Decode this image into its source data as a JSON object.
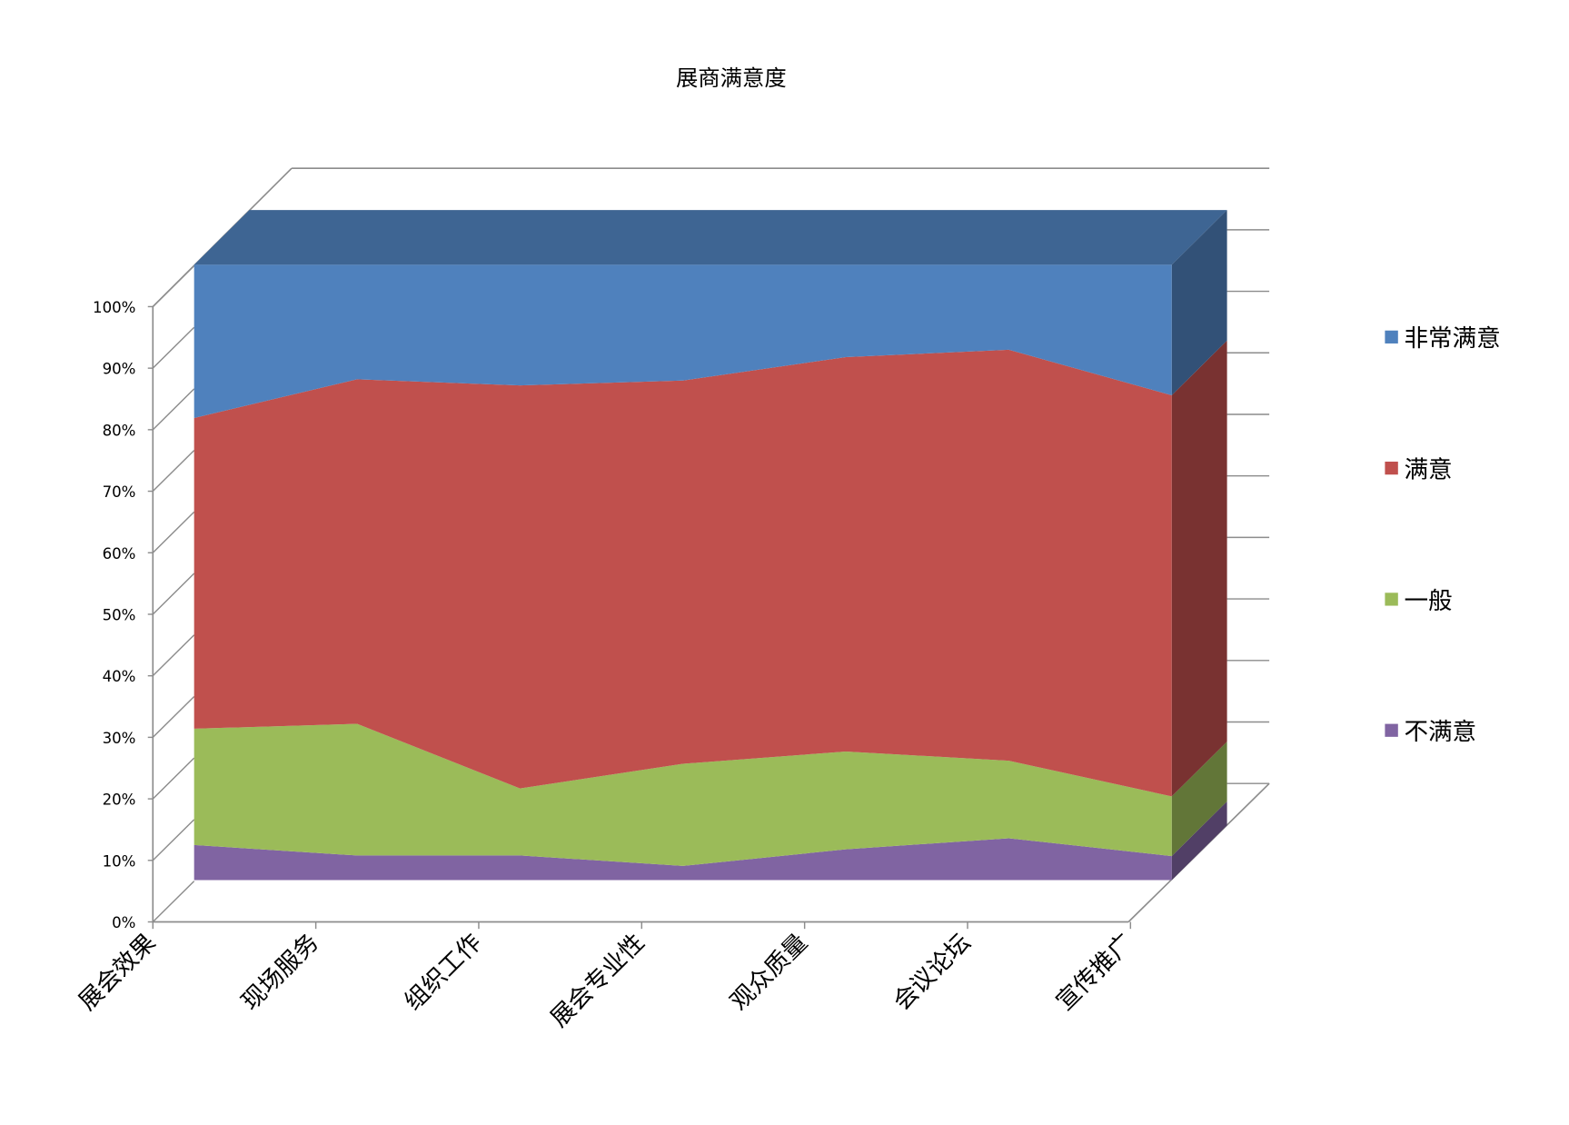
{
  "chart_data": {
    "type": "area",
    "stacked": "percent",
    "three_d": true,
    "title": "展商满意度",
    "categories": [
      "展会效果",
      "现场服务",
      "组织工作",
      "展会专业性",
      "观众质量",
      "会议论坛",
      "宣传推广"
    ],
    "series": [
      {
        "name": "不满意",
        "color": "#8064a2",
        "values": [
          5.7,
          4.0,
          4.0,
          2.3,
          5.0,
          6.8,
          3.9
        ]
      },
      {
        "name": "一般",
        "color": "#9bbb59",
        "values": [
          18.9,
          21.4,
          10.9,
          16.6,
          15.9,
          12.6,
          9.7
        ]
      },
      {
        "name": "满意",
        "color": "#c0504d",
        "values": [
          50.5,
          56.0,
          65.5,
          62.3,
          64.1,
          66.8,
          65.2
        ]
      },
      {
        "name": "非常满意",
        "color": "#4f81bd",
        "values": [
          24.9,
          18.6,
          19.6,
          18.8,
          15.0,
          13.8,
          21.2
        ]
      }
    ],
    "ylim": [
      0,
      100
    ],
    "yticks": [
      "0%",
      "10%",
      "20%",
      "30%",
      "40%",
      "50%",
      "60%",
      "70%",
      "80%",
      "90%",
      "100%"
    ],
    "grid": true,
    "legend_position": "right"
  }
}
